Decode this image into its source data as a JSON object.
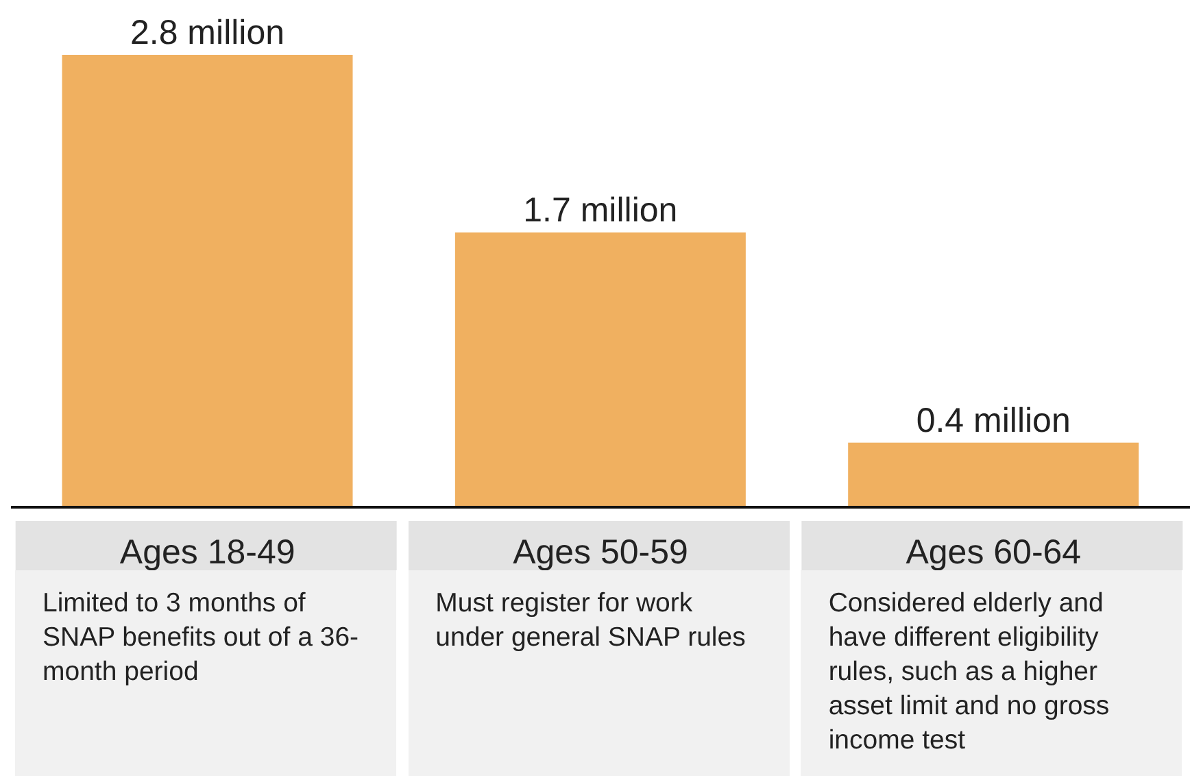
{
  "chart_data": {
    "type": "bar",
    "categories": [
      "Ages 18-49",
      "Ages 50-59",
      "Ages 60-64"
    ],
    "values": [
      2.8,
      1.7,
      0.4
    ],
    "value_labels": [
      "2.8 million",
      "1.7 million",
      "0.4 million"
    ],
    "color": "#f0b060",
    "grid": false,
    "legend": false,
    "annotations": [
      "Limited to 3 months of SNAP benefits out of a 36-month period",
      "Must register for work under general SNAP rules",
      "Considered elderly and have different eligibility rules, such as a higher asset limit and no gross income test"
    ]
  }
}
